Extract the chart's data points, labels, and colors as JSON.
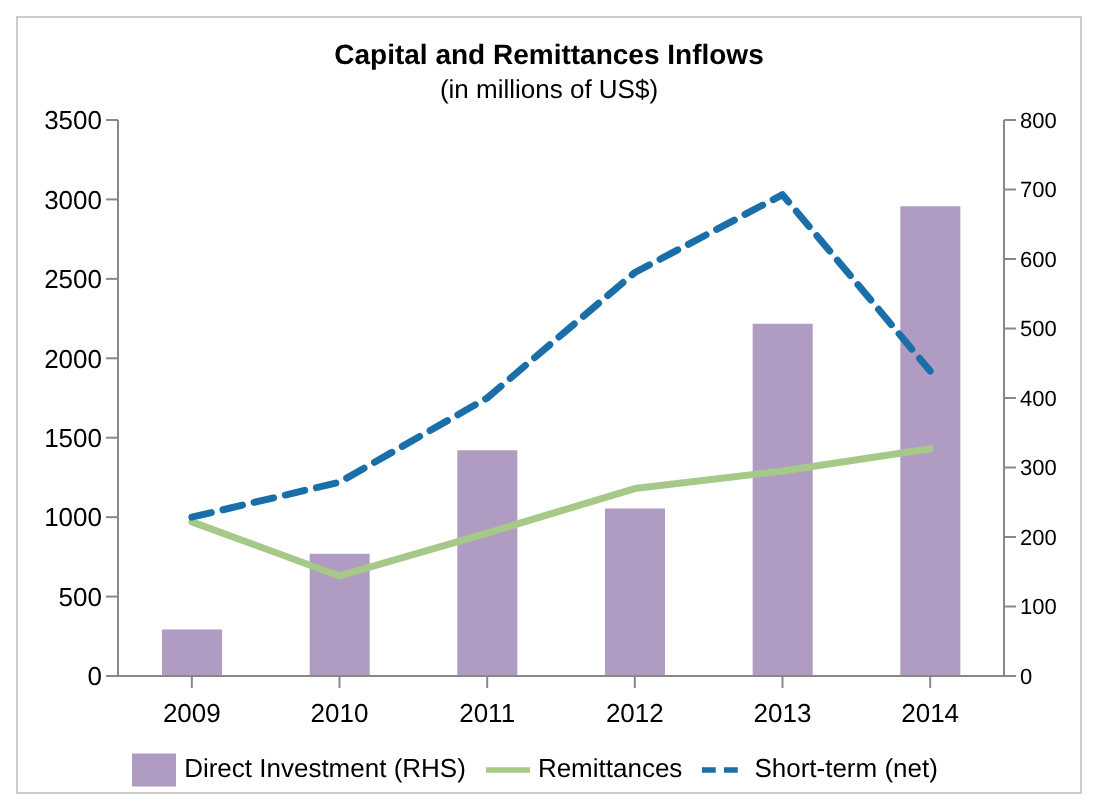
{
  "chart_data": {
    "type": "bar",
    "title": "Capital  and Remittances Inflows",
    "subtitle": "(in millions of US$)",
    "categories": [
      "2009",
      "2010",
      "2011",
      "2012",
      "2013",
      "2014"
    ],
    "series": [
      {
        "name": "Direct Investment (RHS)",
        "axis": "y2",
        "color": "#b09bc2",
        "values": [
          67,
          176,
          325,
          241,
          507,
          676
        ]
      },
      {
        "name": "Remittances",
        "type": "line",
        "color": "#a6c98a",
        "line_style": "solid",
        "values": [
          970,
          630,
          900,
          1180,
          1290,
          1430
        ]
      },
      {
        "name": "Short-term (net)",
        "type": "line",
        "color": "#1a6fa8",
        "line_style": "dashed",
        "values": [
          1000,
          1220,
          1750,
          2540,
          3030,
          1920
        ]
      }
    ],
    "ylim": [
      0,
      3500
    ],
    "yticks": [
      0,
      500,
      1000,
      1500,
      2000,
      2500,
      3000,
      3500
    ],
    "y2lim": [
      0,
      800
    ],
    "y2ticks": [
      0,
      100,
      200,
      300,
      400,
      500,
      600,
      700,
      800
    ],
    "grid": false,
    "legend": "bottom",
    "marker": "none"
  }
}
